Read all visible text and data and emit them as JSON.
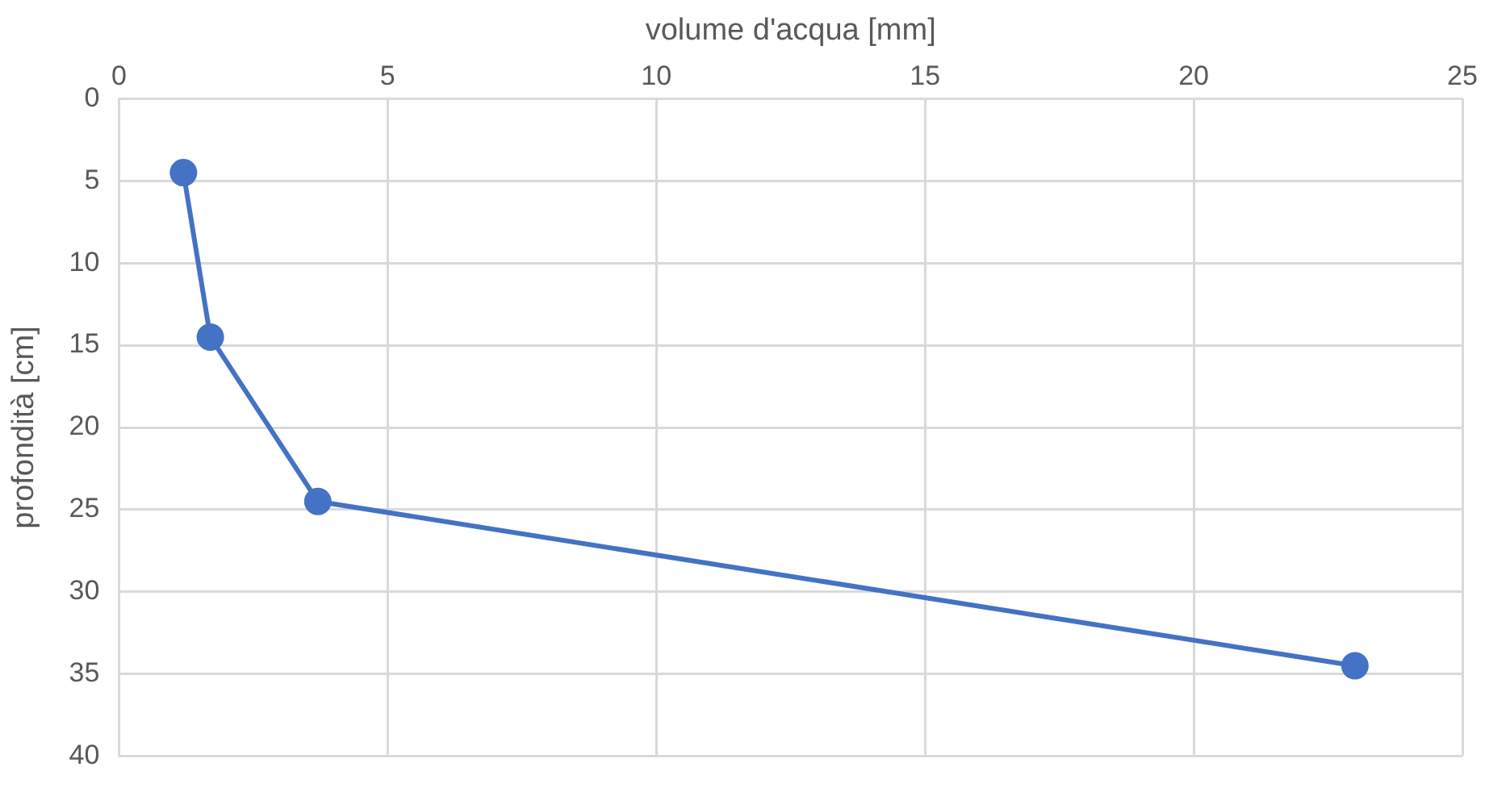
{
  "chart_data": {
    "type": "line",
    "xlabel": "volume d'acqua [mm]",
    "ylabel": "profondità [cm]",
    "x": [
      1.2,
      1.7,
      3.7,
      23.0
    ],
    "series": [
      {
        "color": "#4472c4",
        "values": [
          4.5,
          14.5,
          24.5,
          34.5
        ]
      }
    ],
    "xlim": [
      0,
      25
    ],
    "xticks": [
      0,
      5,
      10,
      15,
      20,
      25
    ],
    "ylim": [
      40,
      0
    ],
    "yticks": [
      0,
      5,
      10,
      15,
      20,
      25,
      30,
      35,
      40
    ],
    "grid": true,
    "legend": false,
    "marker": "circle",
    "line_style": "solid"
  }
}
